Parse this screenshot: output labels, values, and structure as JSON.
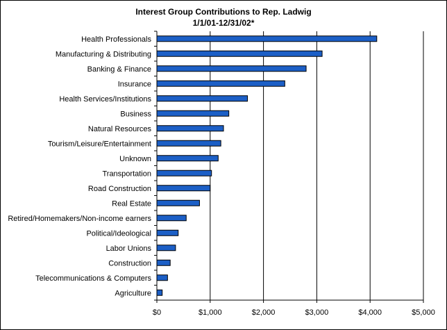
{
  "colors": {
    "bar_fill": "#1c5fc6",
    "bar_stroke": "#000000",
    "grid": "#000000",
    "background": "#ffffff"
  },
  "chart_data": {
    "type": "bar",
    "orientation": "horizontal",
    "title": "Interest Group Contributions to Rep. Ladwig",
    "subtitle": "1/1/01-12/31/02*",
    "categories": [
      "Health Professionals",
      "Manufacturing & Distributing",
      "Banking & Finance",
      "Insurance",
      "Health Services/Institutions",
      "Business",
      "Natural Resources",
      "Tourism/Leisure/Entertainment",
      "Unknown",
      "Transportation",
      "Road Construction",
      "Real Estate",
      "Retired/Homemakers/Non-income earners",
      "Political/Ideological",
      "Labor Unions",
      "Construction",
      "Telecommunications & Computers",
      "Agriculture"
    ],
    "values": [
      4125,
      3100,
      2800,
      2400,
      1700,
      1350,
      1250,
      1200,
      1150,
      1025,
      1000,
      800,
      550,
      400,
      350,
      250,
      200,
      100
    ],
    "xlim": [
      0,
      5000
    ],
    "x_ticks": [
      0,
      1000,
      2000,
      3000,
      4000,
      5000
    ],
    "x_tick_labels": [
      "$0",
      "$1,000",
      "$2,000",
      "$3,000",
      "$4,000",
      "$5,000"
    ],
    "xlabel": "",
    "ylabel": "",
    "grid": true,
    "legend": "none"
  }
}
